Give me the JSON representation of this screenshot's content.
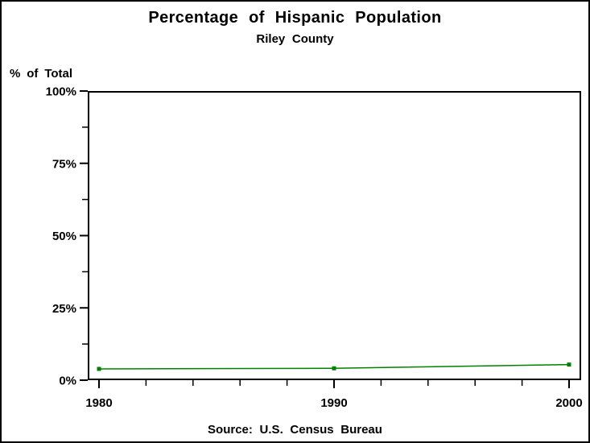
{
  "header": {
    "title": "Percentage of Hispanic Population",
    "subtitle": "Riley County"
  },
  "footer": {
    "source": "Source: U.S. Census Bureau"
  },
  "chart_data": {
    "type": "line",
    "title": "Percentage of Hispanic Population",
    "subtitle": "Riley County",
    "ylabel": "% of Total",
    "xlabel": "",
    "x": [
      1980,
      1990,
      2000
    ],
    "series": [
      {
        "name": "percent-hispanic-of-total",
        "values": [
          3.9,
          4.1,
          5.4
        ]
      }
    ],
    "xlim": [
      1980,
      2000
    ],
    "ylim": [
      0,
      100
    ],
    "y_ticks": {
      "values": [
        0,
        25,
        50,
        75,
        100
      ],
      "labels": [
        "0%",
        "25%",
        "50%",
        "75%",
        "100%"
      ]
    },
    "y_minor_tick_step": 12.5,
    "x_ticks": {
      "values": [
        1980,
        1990,
        2000
      ],
      "labels": [
        "1980",
        "1990",
        "2000"
      ]
    },
    "x_minor_tick_step": 2,
    "grid": false,
    "legend": "none",
    "line_color": "#008000",
    "marker": "square",
    "axis_color": "#000000",
    "source": "Source: U.S. Census Bureau"
  }
}
